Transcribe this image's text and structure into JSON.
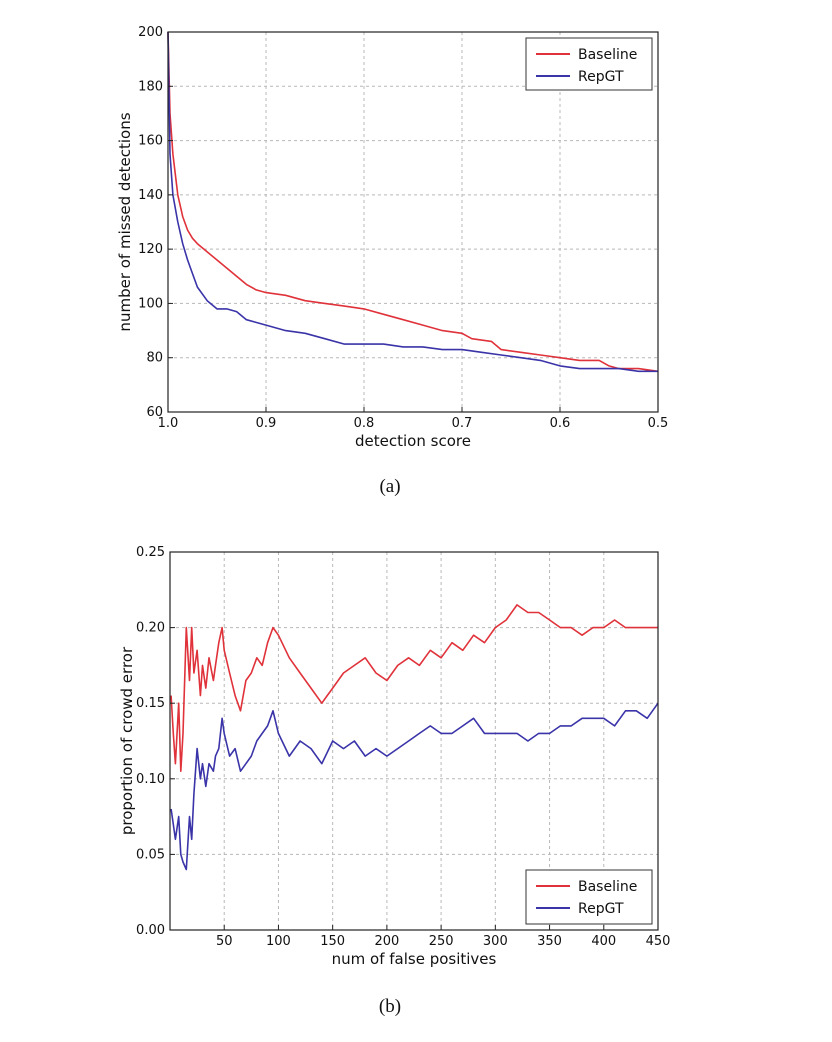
{
  "colors": {
    "baseline": "#e0323a",
    "repgt": "#3a34a8"
  },
  "chart_data": [
    {
      "id": "a",
      "type": "line",
      "caption": "(a)",
      "xlabel": "detection score",
      "ylabel": "number of missed detections",
      "xlim": [
        1.0,
        0.5
      ],
      "ylim": [
        60,
        200
      ],
      "xticks": [
        1.0,
        0.9,
        0.8,
        0.7,
        0.6,
        0.5
      ],
      "xtick_labels": [
        "1.0",
        "0.9",
        "0.8",
        "0.7",
        "0.6",
        "0.5"
      ],
      "yticks": [
        60,
        80,
        100,
        120,
        140,
        160,
        180,
        200
      ],
      "ytick_labels": [
        "60",
        "80",
        "100",
        "120",
        "140",
        "160",
        "180",
        "200"
      ],
      "grid": true,
      "legend_position": "top-right",
      "series": [
        {
          "name": "Baseline",
          "x": [
            1.0,
            0.998,
            0.995,
            0.99,
            0.985,
            0.98,
            0.975,
            0.97,
            0.96,
            0.95,
            0.94,
            0.93,
            0.92,
            0.91,
            0.9,
            0.88,
            0.86,
            0.84,
            0.82,
            0.8,
            0.78,
            0.76,
            0.74,
            0.72,
            0.7,
            0.69,
            0.67,
            0.66,
            0.64,
            0.62,
            0.6,
            0.58,
            0.56,
            0.55,
            0.54,
            0.52,
            0.5
          ],
          "y": [
            200,
            170,
            155,
            140,
            132,
            127,
            124,
            122,
            119,
            116,
            113,
            110,
            107,
            105,
            104,
            103,
            101,
            100,
            99,
            98,
            96,
            94,
            92,
            90,
            89,
            87,
            86,
            83,
            82,
            81,
            80,
            79,
            79,
            77,
            76,
            76,
            75
          ]
        },
        {
          "name": "RepGT",
          "x": [
            1.0,
            0.998,
            0.995,
            0.99,
            0.985,
            0.98,
            0.975,
            0.97,
            0.96,
            0.95,
            0.94,
            0.93,
            0.92,
            0.9,
            0.88,
            0.86,
            0.84,
            0.82,
            0.8,
            0.78,
            0.76,
            0.74,
            0.72,
            0.7,
            0.68,
            0.66,
            0.64,
            0.62,
            0.6,
            0.58,
            0.56,
            0.54,
            0.52,
            0.5
          ],
          "y": [
            200,
            155,
            140,
            130,
            122,
            116,
            111,
            106,
            101,
            98,
            98,
            97,
            94,
            92,
            90,
            89,
            87,
            85,
            85,
            85,
            84,
            84,
            83,
            83,
            82,
            81,
            80,
            79,
            77,
            76,
            76,
            76,
            75,
            75
          ]
        }
      ]
    },
    {
      "id": "b",
      "type": "line",
      "caption": "(b)",
      "xlabel": "num of false positives",
      "ylabel": "proportion of crowd error",
      "xlim": [
        0,
        450
      ],
      "ylim": [
        0.0,
        0.25
      ],
      "xticks": [
        50,
        100,
        150,
        200,
        250,
        300,
        350,
        400,
        450
      ],
      "xtick_labels": [
        "50",
        "100",
        "150",
        "200",
        "250",
        "300",
        "350",
        "400",
        "450"
      ],
      "yticks": [
        0.0,
        0.05,
        0.1,
        0.15,
        0.2,
        0.25
      ],
      "ytick_labels": [
        "0.00",
        "0.05",
        "0.10",
        "0.15",
        "0.20",
        "0.25"
      ],
      "grid": true,
      "legend_position": "bottom-right",
      "series": [
        {
          "name": "Baseline",
          "x": [
            1,
            3,
            5,
            8,
            10,
            12,
            15,
            18,
            20,
            22,
            25,
            28,
            30,
            33,
            36,
            40,
            42,
            45,
            48,
            50,
            55,
            60,
            65,
            70,
            75,
            80,
            85,
            90,
            95,
            100,
            110,
            120,
            130,
            140,
            145,
            150,
            160,
            170,
            180,
            190,
            200,
            210,
            220,
            230,
            240,
            250,
            260,
            270,
            280,
            290,
            300,
            310,
            320,
            330,
            340,
            350,
            360,
            370,
            380,
            390,
            400,
            410,
            420,
            430,
            440,
            450
          ],
          "y": [
            0.155,
            0.13,
            0.11,
            0.15,
            0.105,
            0.13,
            0.2,
            0.165,
            0.2,
            0.17,
            0.185,
            0.155,
            0.175,
            0.16,
            0.18,
            0.165,
            0.175,
            0.19,
            0.2,
            0.185,
            0.17,
            0.155,
            0.145,
            0.165,
            0.17,
            0.18,
            0.175,
            0.19,
            0.2,
            0.195,
            0.18,
            0.17,
            0.16,
            0.15,
            0.155,
            0.16,
            0.17,
            0.175,
            0.18,
            0.17,
            0.165,
            0.175,
            0.18,
            0.175,
            0.185,
            0.18,
            0.19,
            0.185,
            0.195,
            0.19,
            0.2,
            0.205,
            0.215,
            0.21,
            0.21,
            0.205,
            0.2,
            0.2,
            0.195,
            0.2,
            0.2,
            0.205,
            0.2,
            0.2,
            0.2,
            0.2
          ]
        },
        {
          "name": "RepGT",
          "x": [
            1,
            3,
            5,
            8,
            10,
            12,
            15,
            18,
            20,
            22,
            25,
            28,
            30,
            33,
            36,
            40,
            42,
            45,
            48,
            50,
            55,
            60,
            65,
            70,
            75,
            80,
            85,
            90,
            95,
            100,
            110,
            120,
            130,
            140,
            150,
            160,
            170,
            180,
            190,
            200,
            210,
            220,
            230,
            240,
            250,
            260,
            270,
            280,
            290,
            300,
            310,
            320,
            330,
            340,
            350,
            360,
            370,
            380,
            390,
            400,
            410,
            420,
            430,
            440,
            450
          ],
          "y": [
            0.08,
            0.07,
            0.06,
            0.075,
            0.05,
            0.045,
            0.04,
            0.075,
            0.06,
            0.09,
            0.12,
            0.1,
            0.11,
            0.095,
            0.11,
            0.105,
            0.115,
            0.12,
            0.14,
            0.13,
            0.115,
            0.12,
            0.105,
            0.11,
            0.115,
            0.125,
            0.13,
            0.135,
            0.145,
            0.13,
            0.115,
            0.125,
            0.12,
            0.11,
            0.125,
            0.12,
            0.125,
            0.115,
            0.12,
            0.115,
            0.12,
            0.125,
            0.13,
            0.135,
            0.13,
            0.13,
            0.135,
            0.14,
            0.13,
            0.13,
            0.13,
            0.13,
            0.125,
            0.13,
            0.13,
            0.135,
            0.135,
            0.14,
            0.14,
            0.14,
            0.135,
            0.145,
            0.145,
            0.14,
            0.15
          ]
        }
      ]
    }
  ]
}
